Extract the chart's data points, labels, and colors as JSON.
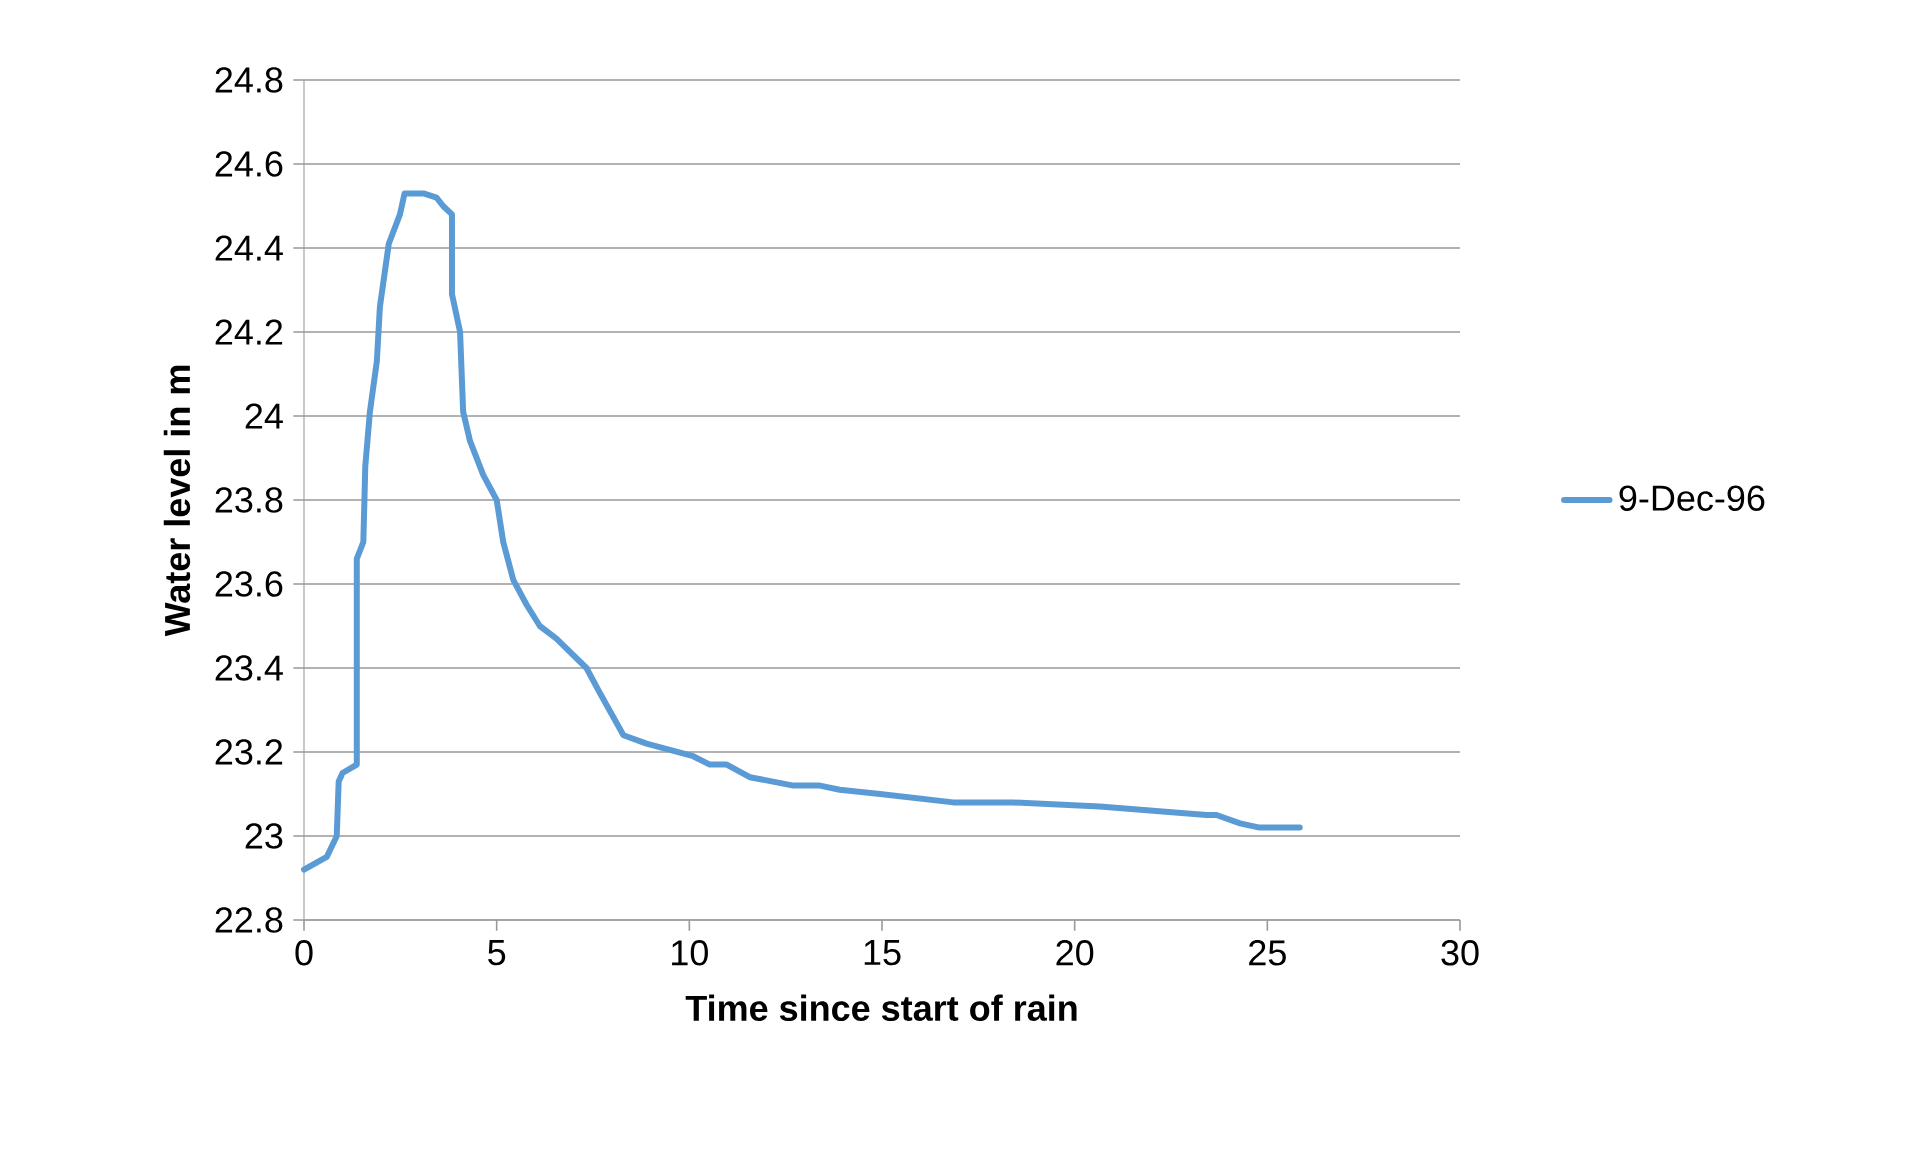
{
  "chart_data": {
    "type": "line",
    "xlabel": "Time since start of rain",
    "ylabel": "Water level in m",
    "xlim": [
      0,
      30
    ],
    "xticks": [
      0,
      5,
      10,
      15,
      20,
      25,
      30
    ],
    "ylim": [
      22.8,
      24.8
    ],
    "yticks": [
      22.8,
      23,
      23.2,
      23.4,
      23.6,
      23.8,
      24,
      24.2,
      24.4,
      24.6,
      24.8
    ],
    "grid": "y",
    "legend": "right",
    "series": [
      {
        "name": "9-Dec-96",
        "color": "#5b9bd5",
        "x": [
          0,
          0.59,
          0.85,
          0.9,
          1.0,
          1.37,
          1.37,
          1.54,
          1.59,
          1.71,
          1.89,
          1.97,
          2.2,
          2.49,
          2.61,
          3.1,
          3.44,
          3.61,
          3.84,
          3.84,
          4.05,
          4.13,
          4.31,
          4.65,
          5.0,
          5.17,
          5.43,
          5.78,
          6.12,
          6.55,
          7.33,
          7.68,
          8.29,
          8.89,
          10.1,
          10.53,
          10.97,
          11.57,
          12.7,
          13.39,
          13.9,
          14.95,
          16.85,
          18.4,
          20.65,
          23.42,
          23.68,
          24.29,
          24.8,
          25.84
        ],
        "values": [
          22.92,
          22.95,
          23.0,
          23.13,
          23.15,
          23.17,
          23.66,
          23.7,
          23.88,
          24.01,
          24.13,
          24.26,
          24.41,
          24.48,
          24.53,
          24.53,
          24.52,
          24.5,
          24.48,
          24.29,
          24.2,
          24.01,
          23.94,
          23.86,
          23.8,
          23.7,
          23.61,
          23.55,
          23.5,
          23.47,
          23.4,
          23.34,
          23.24,
          23.22,
          23.19,
          23.17,
          23.17,
          23.14,
          23.12,
          23.12,
          23.11,
          23.1,
          23.08,
          23.08,
          23.07,
          23.05,
          23.05,
          23.03,
          23.02,
          23.02
        ]
      }
    ]
  }
}
